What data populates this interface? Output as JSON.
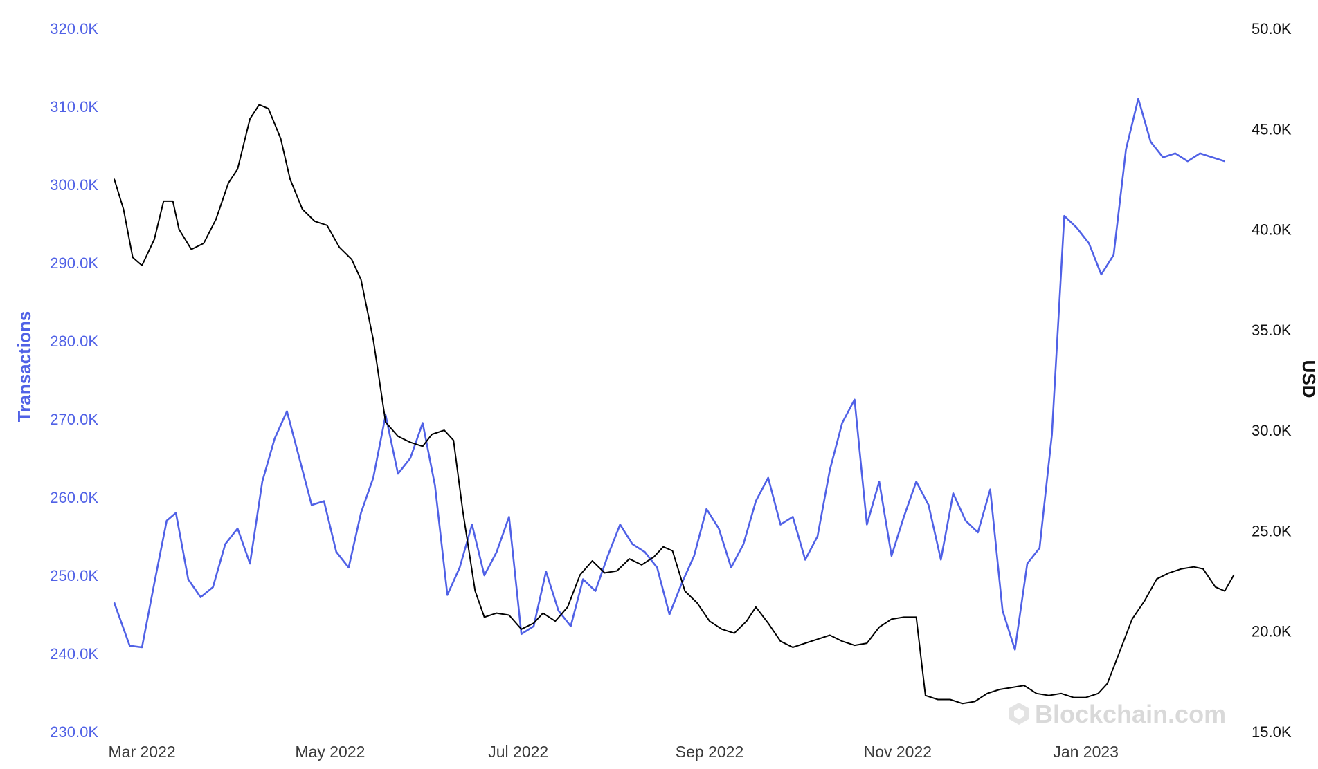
{
  "chart_data": {
    "type": "line",
    "x_range": [
      "2022-02-20",
      "2023-02-19"
    ],
    "xticks": [
      "Mar 2022",
      "May 2022",
      "Jul 2022",
      "Sep 2022",
      "Nov 2022",
      "Jan 2023"
    ],
    "y_left": {
      "label": "Transactions",
      "ylim": [
        230000,
        320000
      ],
      "ticks": [
        "230.0K",
        "240.0K",
        "250.0K",
        "260.0K",
        "270.0K",
        "280.0K",
        "290.0K",
        "300.0K",
        "310.0K",
        "320.0K"
      ]
    },
    "y_right": {
      "label": "USD",
      "ylim": [
        15000,
        50000
      ],
      "ticks": [
        "15.0K",
        "20.0K",
        "25.0K",
        "30.0K",
        "35.0K",
        "40.0K",
        "45.0K",
        "50.0K"
      ]
    },
    "grid": false,
    "legend": "none",
    "series": [
      {
        "axis": "left",
        "color": "#5061e6",
        "points": [
          [
            "2022-02-20",
            246500
          ],
          [
            "2022-02-25",
            241000
          ],
          [
            "2022-03-01",
            240800
          ],
          [
            "2022-03-05",
            249000
          ],
          [
            "2022-03-09",
            257000
          ],
          [
            "2022-03-12",
            258000
          ],
          [
            "2022-03-16",
            249500
          ],
          [
            "2022-03-20",
            247200
          ],
          [
            "2022-03-24",
            248500
          ],
          [
            "2022-03-28",
            254000
          ],
          [
            "2022-04-01",
            256000
          ],
          [
            "2022-04-05",
            251500
          ],
          [
            "2022-04-09",
            262000
          ],
          [
            "2022-04-13",
            267500
          ],
          [
            "2022-04-17",
            271000
          ],
          [
            "2022-04-21",
            265000
          ],
          [
            "2022-04-25",
            259000
          ],
          [
            "2022-04-29",
            259500
          ],
          [
            "2022-05-03",
            253000
          ],
          [
            "2022-05-07",
            251000
          ],
          [
            "2022-05-11",
            258000
          ],
          [
            "2022-05-15",
            262500
          ],
          [
            "2022-05-19",
            270500
          ],
          [
            "2022-05-23",
            263000
          ],
          [
            "2022-05-27",
            265000
          ],
          [
            "2022-05-31",
            269500
          ],
          [
            "2022-06-04",
            261500
          ],
          [
            "2022-06-08",
            247500
          ],
          [
            "2022-06-12",
            251000
          ],
          [
            "2022-06-16",
            256500
          ],
          [
            "2022-06-20",
            250000
          ],
          [
            "2022-06-24",
            253000
          ],
          [
            "2022-06-28",
            257500
          ],
          [
            "2022-07-02",
            242500
          ],
          [
            "2022-07-06",
            243500
          ],
          [
            "2022-07-10",
            250500
          ],
          [
            "2022-07-14",
            245500
          ],
          [
            "2022-07-18",
            243500
          ],
          [
            "2022-07-22",
            249500
          ],
          [
            "2022-07-26",
            248000
          ],
          [
            "2022-07-30",
            252500
          ],
          [
            "2022-08-03",
            256500
          ],
          [
            "2022-08-07",
            254000
          ],
          [
            "2022-08-11",
            253000
          ],
          [
            "2022-08-15",
            251000
          ],
          [
            "2022-08-19",
            245000
          ],
          [
            "2022-08-23",
            249000
          ],
          [
            "2022-08-27",
            252500
          ],
          [
            "2022-08-31",
            258500
          ],
          [
            "2022-09-04",
            256000
          ],
          [
            "2022-09-08",
            251000
          ],
          [
            "2022-09-12",
            254000
          ],
          [
            "2022-09-16",
            259500
          ],
          [
            "2022-09-20",
            262500
          ],
          [
            "2022-09-24",
            256500
          ],
          [
            "2022-09-28",
            257500
          ],
          [
            "2022-10-02",
            252000
          ],
          [
            "2022-10-06",
            255000
          ],
          [
            "2022-10-10",
            263500
          ],
          [
            "2022-10-14",
            269500
          ],
          [
            "2022-10-18",
            272500
          ],
          [
            "2022-10-22",
            256500
          ],
          [
            "2022-10-26",
            262000
          ],
          [
            "2022-10-30",
            252500
          ],
          [
            "2022-11-03",
            257500
          ],
          [
            "2022-11-07",
            262000
          ],
          [
            "2022-11-11",
            259000
          ],
          [
            "2022-11-15",
            252000
          ],
          [
            "2022-11-19",
            260500
          ],
          [
            "2022-11-23",
            257000
          ],
          [
            "2022-11-27",
            255500
          ],
          [
            "2022-12-01",
            261000
          ],
          [
            "2022-12-05",
            245500
          ],
          [
            "2022-12-09",
            240500
          ],
          [
            "2022-12-13",
            251500
          ],
          [
            "2022-12-17",
            253500
          ],
          [
            "2022-12-21",
            268000
          ],
          [
            "2022-12-25",
            296000
          ],
          [
            "2022-12-29",
            294500
          ],
          [
            "2023-01-02",
            292500
          ],
          [
            "2023-01-06",
            288500
          ],
          [
            "2023-01-10",
            291000
          ],
          [
            "2023-01-14",
            304500
          ],
          [
            "2023-01-18",
            311000
          ],
          [
            "2023-01-22",
            305500
          ],
          [
            "2023-01-26",
            303500
          ],
          [
            "2023-01-30",
            304000
          ],
          [
            "2023-02-03",
            303000
          ],
          [
            "2023-02-07",
            304000
          ],
          [
            "2023-02-11",
            303500
          ],
          [
            "2023-02-15",
            303000
          ]
        ]
      },
      {
        "axis": "right",
        "color": "#000000",
        "points": [
          [
            "2022-02-20",
            42500
          ],
          [
            "2022-02-23",
            41000
          ],
          [
            "2022-02-26",
            38600
          ],
          [
            "2022-03-01",
            38200
          ],
          [
            "2022-03-05",
            39500
          ],
          [
            "2022-03-08",
            41400
          ],
          [
            "2022-03-11",
            41400
          ],
          [
            "2022-03-13",
            40000
          ],
          [
            "2022-03-17",
            39000
          ],
          [
            "2022-03-21",
            39300
          ],
          [
            "2022-03-25",
            40500
          ],
          [
            "2022-03-29",
            42300
          ],
          [
            "2022-04-01",
            43000
          ],
          [
            "2022-04-05",
            45500
          ],
          [
            "2022-04-08",
            46200
          ],
          [
            "2022-04-11",
            46000
          ],
          [
            "2022-04-15",
            44500
          ],
          [
            "2022-04-18",
            42500
          ],
          [
            "2022-04-22",
            41000
          ],
          [
            "2022-04-26",
            40400
          ],
          [
            "2022-04-30",
            40200
          ],
          [
            "2022-05-04",
            39100
          ],
          [
            "2022-05-08",
            38500
          ],
          [
            "2022-05-11",
            37500
          ],
          [
            "2022-05-15",
            34500
          ],
          [
            "2022-05-19",
            30400
          ],
          [
            "2022-05-23",
            29700
          ],
          [
            "2022-05-27",
            29400
          ],
          [
            "2022-05-31",
            29200
          ],
          [
            "2022-06-03",
            29800
          ],
          [
            "2022-06-07",
            30000
          ],
          [
            "2022-06-10",
            29500
          ],
          [
            "2022-06-13",
            26000
          ],
          [
            "2022-06-17",
            22000
          ],
          [
            "2022-06-20",
            20700
          ],
          [
            "2022-06-24",
            20900
          ],
          [
            "2022-06-28",
            20800
          ],
          [
            "2022-07-02",
            20100
          ],
          [
            "2022-07-06",
            20400
          ],
          [
            "2022-07-09",
            20900
          ],
          [
            "2022-07-13",
            20500
          ],
          [
            "2022-07-17",
            21200
          ],
          [
            "2022-07-21",
            22800
          ],
          [
            "2022-07-25",
            23500
          ],
          [
            "2022-07-29",
            22900
          ],
          [
            "2022-08-02",
            23000
          ],
          [
            "2022-08-06",
            23600
          ],
          [
            "2022-08-10",
            23300
          ],
          [
            "2022-08-14",
            23700
          ],
          [
            "2022-08-17",
            24200
          ],
          [
            "2022-08-20",
            24000
          ],
          [
            "2022-08-24",
            22000
          ],
          [
            "2022-08-28",
            21400
          ],
          [
            "2022-09-01",
            20500
          ],
          [
            "2022-09-05",
            20100
          ],
          [
            "2022-09-09",
            19900
          ],
          [
            "2022-09-13",
            20500
          ],
          [
            "2022-09-16",
            21200
          ],
          [
            "2022-09-20",
            20400
          ],
          [
            "2022-09-24",
            19500
          ],
          [
            "2022-09-28",
            19200
          ],
          [
            "2022-10-02",
            19400
          ],
          [
            "2022-10-06",
            19600
          ],
          [
            "2022-10-10",
            19800
          ],
          [
            "2022-10-14",
            19500
          ],
          [
            "2022-10-18",
            19300
          ],
          [
            "2022-10-22",
            19400
          ],
          [
            "2022-10-26",
            20200
          ],
          [
            "2022-10-30",
            20600
          ],
          [
            "2022-11-03",
            20700
          ],
          [
            "2022-11-07",
            20700
          ],
          [
            "2022-11-10",
            16800
          ],
          [
            "2022-11-14",
            16600
          ],
          [
            "2022-11-18",
            16600
          ],
          [
            "2022-11-22",
            16400
          ],
          [
            "2022-11-26",
            16500
          ],
          [
            "2022-11-30",
            16900
          ],
          [
            "2022-12-04",
            17100
          ],
          [
            "2022-12-08",
            17200
          ],
          [
            "2022-12-12",
            17300
          ],
          [
            "2022-12-16",
            16900
          ],
          [
            "2022-12-20",
            16800
          ],
          [
            "2022-12-24",
            16900
          ],
          [
            "2022-12-28",
            16700
          ],
          [
            "2023-01-01",
            16700
          ],
          [
            "2023-01-05",
            16900
          ],
          [
            "2023-01-08",
            17400
          ],
          [
            "2023-01-12",
            19000
          ],
          [
            "2023-01-16",
            20600
          ],
          [
            "2023-01-20",
            21500
          ],
          [
            "2023-01-24",
            22600
          ],
          [
            "2023-01-28",
            22900
          ],
          [
            "2023-02-01",
            23100
          ],
          [
            "2023-02-05",
            23200
          ],
          [
            "2023-02-08",
            23100
          ],
          [
            "2023-02-12",
            22200
          ],
          [
            "2023-02-15",
            22000
          ],
          [
            "2023-02-18",
            22800
          ]
        ]
      }
    ]
  },
  "watermark": {
    "text": "Blockchain.com",
    "color": "#d9d9d9"
  }
}
